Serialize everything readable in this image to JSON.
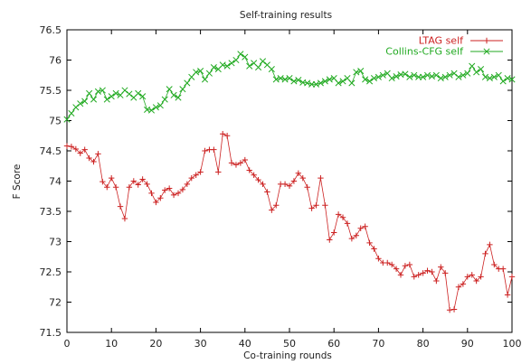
{
  "chart_data": {
    "type": "line",
    "title": "Self-training results",
    "xlabel": "Co-training rounds",
    "ylabel": "F Score",
    "xlim": [
      0,
      100
    ],
    "ylim": [
      71.5,
      76.5
    ],
    "xticks": [
      "0",
      "10",
      "20",
      "30",
      "40",
      "50",
      "60",
      "70",
      "80",
      "90",
      "100"
    ],
    "yticks": [
      "71.5",
      "72",
      "72.5",
      "73",
      "73.5",
      "74",
      "74.5",
      "75",
      "75.5",
      "76",
      "76.5"
    ],
    "legend_position": "top-right",
    "grid": false,
    "series": [
      {
        "name": "LTAG self",
        "color": "#cc2222",
        "marker": "+",
        "x": [
          0,
          1,
          2,
          3,
          4,
          5,
          6,
          7,
          8,
          9,
          10,
          11,
          12,
          13,
          14,
          15,
          16,
          17,
          18,
          19,
          20,
          21,
          22,
          23,
          24,
          25,
          26,
          27,
          28,
          29,
          30,
          31,
          32,
          33,
          34,
          35,
          36,
          37,
          38,
          39,
          40,
          41,
          42,
          43,
          44,
          45,
          46,
          47,
          48,
          49,
          50,
          51,
          52,
          53,
          54,
          55,
          56,
          57,
          58,
          59,
          60,
          61,
          62,
          63,
          64,
          65,
          66,
          67,
          68,
          69,
          70,
          71,
          72,
          73,
          74,
          75,
          76,
          77,
          78,
          79,
          80,
          81,
          82,
          83,
          84,
          85,
          86,
          87,
          88,
          89,
          90,
          91,
          92,
          93,
          94,
          95,
          96,
          97,
          98,
          99,
          100
        ],
        "values": [
          74.58,
          74.57,
          74.53,
          74.46,
          74.52,
          74.38,
          74.32,
          74.45,
          73.99,
          73.9,
          74.05,
          73.9,
          73.58,
          73.38,
          73.9,
          74.0,
          73.94,
          74.03,
          73.95,
          73.8,
          73.65,
          73.72,
          73.85,
          73.88,
          73.77,
          73.8,
          73.86,
          73.95,
          74.05,
          74.1,
          74.15,
          74.5,
          74.52,
          74.52,
          74.15,
          74.78,
          74.75,
          74.3,
          74.27,
          74.3,
          74.35,
          74.18,
          74.1,
          74.02,
          73.95,
          73.82,
          73.52,
          73.6,
          73.95,
          73.95,
          73.92,
          74.0,
          74.13,
          74.05,
          73.9,
          73.55,
          73.6,
          74.05,
          73.6,
          73.03,
          73.15,
          73.45,
          73.4,
          73.3,
          73.05,
          73.1,
          73.22,
          73.25,
          72.98,
          72.88,
          72.72,
          72.65,
          72.65,
          72.62,
          72.55,
          72.45,
          72.6,
          72.62,
          72.42,
          72.45,
          72.48,
          72.52,
          72.5,
          72.35,
          72.58,
          72.48,
          71.87,
          71.88,
          72.25,
          72.3,
          72.42,
          72.45,
          72.35,
          72.42,
          72.8,
          72.95,
          72.62,
          72.55,
          72.55,
          72.12,
          72.42
        ]
      },
      {
        "name": "Collins-CFG self",
        "color": "#22aa22",
        "marker": "x",
        "x": [
          0,
          1,
          2,
          3,
          4,
          5,
          6,
          7,
          8,
          9,
          10,
          11,
          12,
          13,
          14,
          15,
          16,
          17,
          18,
          19,
          20,
          21,
          22,
          23,
          24,
          25,
          26,
          27,
          28,
          29,
          30,
          31,
          32,
          33,
          34,
          35,
          36,
          37,
          38,
          39,
          40,
          41,
          42,
          43,
          44,
          45,
          46,
          47,
          48,
          49,
          50,
          51,
          52,
          53,
          54,
          55,
          56,
          57,
          58,
          59,
          60,
          61,
          62,
          63,
          64,
          65,
          66,
          67,
          68,
          69,
          70,
          71,
          72,
          73,
          74,
          75,
          76,
          77,
          78,
          79,
          80,
          81,
          82,
          83,
          84,
          85,
          86,
          87,
          88,
          89,
          90,
          91,
          92,
          93,
          94,
          95,
          96,
          97,
          98,
          99,
          100
        ],
        "values": [
          75.02,
          75.12,
          75.22,
          75.28,
          75.32,
          75.45,
          75.35,
          75.48,
          75.5,
          75.35,
          75.4,
          75.45,
          75.42,
          75.5,
          75.44,
          75.38,
          75.45,
          75.4,
          75.18,
          75.17,
          75.22,
          75.25,
          75.35,
          75.52,
          75.42,
          75.38,
          75.52,
          75.62,
          75.72,
          75.8,
          75.82,
          75.68,
          75.78,
          75.88,
          75.85,
          75.92,
          75.9,
          75.95,
          76.0,
          76.1,
          76.05,
          75.9,
          75.95,
          75.88,
          75.98,
          75.92,
          75.85,
          75.68,
          75.7,
          75.68,
          75.7,
          75.65,
          75.67,
          75.63,
          75.62,
          75.6,
          75.6,
          75.62,
          75.65,
          75.68,
          75.7,
          75.62,
          75.65,
          75.7,
          75.62,
          75.8,
          75.82,
          75.68,
          75.65,
          75.7,
          75.72,
          75.75,
          75.78,
          75.7,
          75.73,
          75.76,
          75.77,
          75.72,
          75.75,
          75.72,
          75.72,
          75.75,
          75.73,
          75.75,
          75.7,
          75.72,
          75.75,
          75.78,
          75.72,
          75.75,
          75.78,
          75.9,
          75.8,
          75.85,
          75.72,
          75.7,
          75.72,
          75.75,
          75.65,
          75.7,
          75.68
        ]
      }
    ]
  }
}
